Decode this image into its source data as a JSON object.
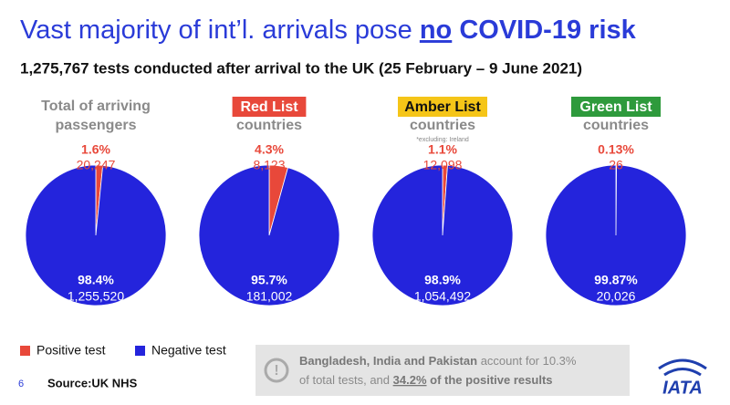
{
  "header": {
    "title": {
      "lead": "Vast majority of int’l. arrivals pose",
      "emphasis": "no",
      "tail": "COVID-19 risk"
    },
    "subtitle": "1,275,767 tests conducted after arrival to the UK (25 February – 9 June 2021)"
  },
  "legend": {
    "labels": [
      "Positive test",
      "Negative test"
    ],
    "colors": [
      "#e8483a",
      "#2424dc"
    ]
  },
  "chart_data": [
    {
      "type": "pie",
      "title": "Total of arriving",
      "subtitle": "passengers",
      "values": [
        20247,
        1255520
      ],
      "value_labels": [
        "20,247",
        "1,255,520"
      ],
      "percents": [
        1.6,
        98.4
      ],
      "percent_labels": [
        "1.6%",
        "98.4%"
      ]
    },
    {
      "type": "pie",
      "title": "Red List",
      "title_bg": "#e8483a",
      "subtitle": "countries",
      "values": [
        8123,
        181002
      ],
      "value_labels": [
        "8,123",
        "181,002"
      ],
      "percents": [
        4.3,
        95.7
      ],
      "percent_labels": [
        "4.3%",
        "95.7%"
      ]
    },
    {
      "type": "pie",
      "title": "Amber List",
      "title_bg": "#f5c518",
      "subtitle": "countries",
      "note": "*excluding: Ireland",
      "values": [
        12098,
        1054492
      ],
      "value_labels": [
        "12,098",
        "1,054,492"
      ],
      "percents": [
        1.1,
        98.9
      ],
      "percent_labels": [
        "1.1%",
        "98.9%"
      ]
    },
    {
      "type": "pie",
      "title": "Green List",
      "title_bg": "#2e9a3c",
      "subtitle": "countries",
      "values": [
        26,
        20026
      ],
      "value_labels": [
        "26",
        "20,026"
      ],
      "percents": [
        0.13,
        99.87
      ],
      "percent_labels": [
        "0.13%",
        "99.87%"
      ]
    }
  ],
  "note": {
    "line1": {
      "bold": "Bangladesh, India and Pakistan",
      "text": "account for 10.3%"
    },
    "line2": {
      "text": "of total tests, and",
      "underline": "34.2%",
      "bold": "of the positive results"
    }
  },
  "footer": {
    "page": "6",
    "source": "Source:UK NHS"
  },
  "logo": {
    "text": "IATA"
  }
}
